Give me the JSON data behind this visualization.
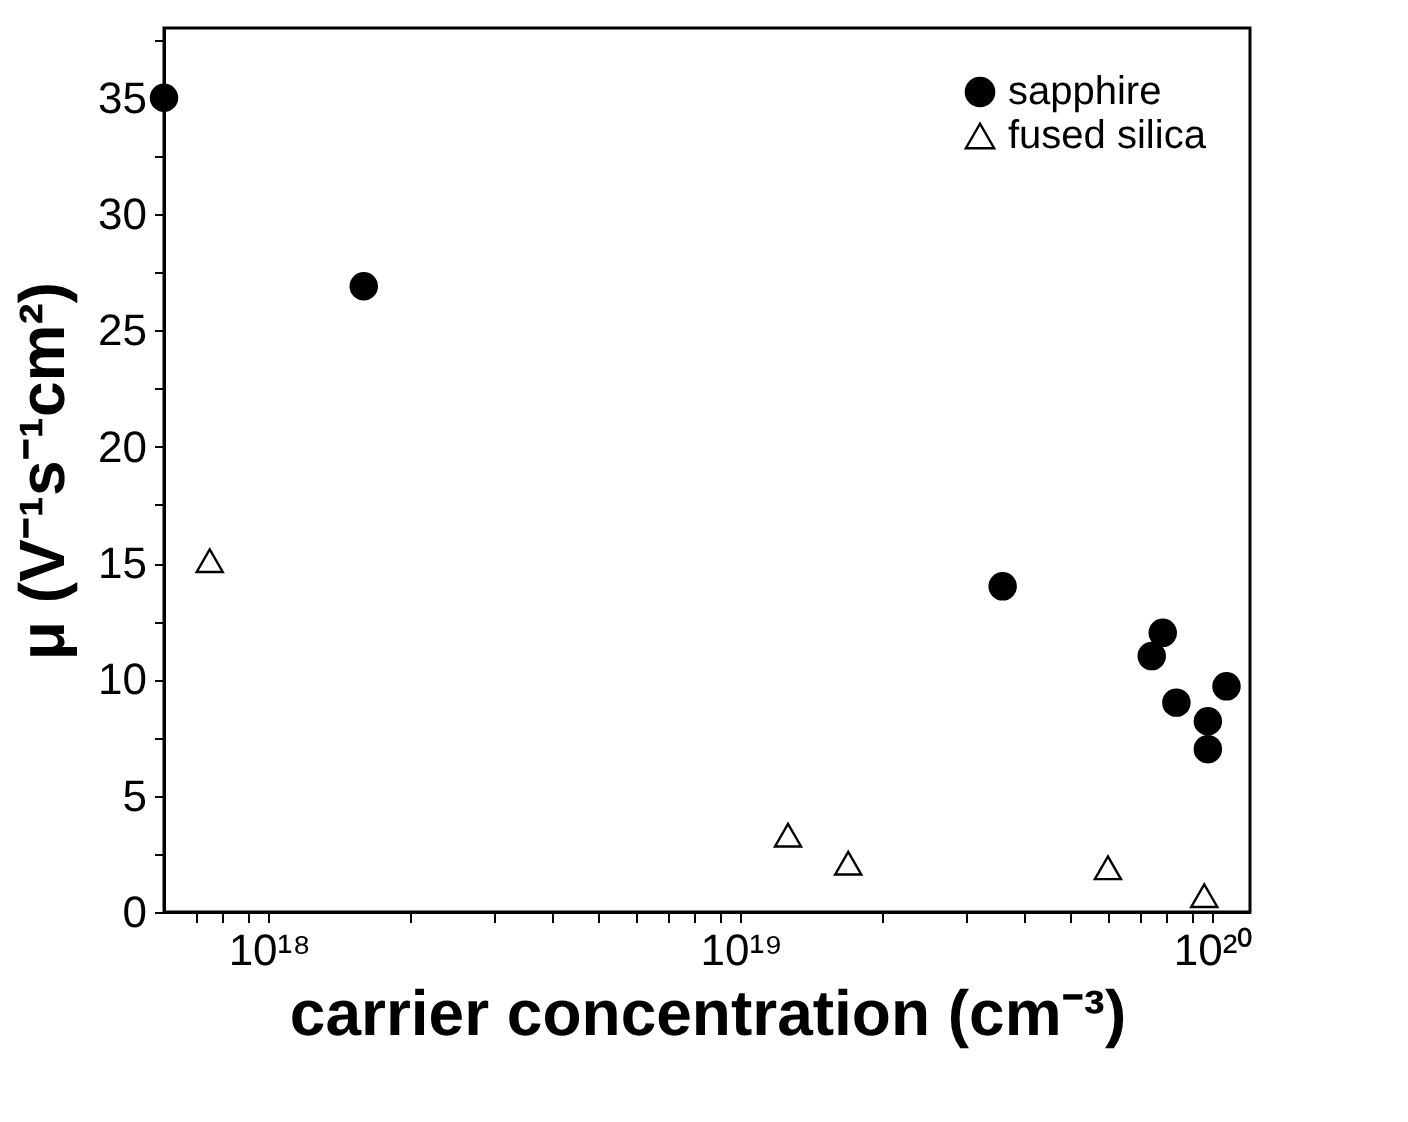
{
  "chart_data": {
    "type": "scatter",
    "xlabel": "carrier concentration (cm⁻³)",
    "ylabel": "μ (V⁻¹s⁻¹cm²)",
    "log": "x",
    "xlim": [
      6e+17,
      1.2e+20
    ],
    "xticks": [
      {
        "value": 7e+17,
        "label": null
      },
      {
        "value": 8e+17,
        "label": null
      },
      {
        "value": 9e+17,
        "label": null
      },
      {
        "value": 1e+18,
        "label": "10¹⁸"
      },
      {
        "value": 2e+18,
        "label": null
      },
      {
        "value": 3e+18,
        "label": null
      },
      {
        "value": 4e+18,
        "label": null
      },
      {
        "value": 5e+18,
        "label": null
      },
      {
        "value": 6e+18,
        "label": null
      },
      {
        "value": 7e+18,
        "label": null
      },
      {
        "value": 8e+18,
        "label": null
      },
      {
        "value": 9e+18,
        "label": null
      },
      {
        "value": 1e+19,
        "label": "10¹⁹"
      },
      {
        "value": 2e+19,
        "label": null
      },
      {
        "value": 3e+19,
        "label": null
      },
      {
        "value": 4e+19,
        "label": null
      },
      {
        "value": 5e+19,
        "label": null
      },
      {
        "value": 6e+19,
        "label": null
      },
      {
        "value": 7e+19,
        "label": null
      },
      {
        "value": 8e+19,
        "label": null
      },
      {
        "value": 9e+19,
        "label": null
      },
      {
        "value": 1e+20,
        "label": "10²⁰"
      }
    ],
    "ylim": [
      0,
      38
    ],
    "yticks": [
      0,
      {
        "value": 2.5,
        "label": null
      },
      5,
      {
        "value": 7.5,
        "label": null
      },
      10,
      {
        "value": 12.5,
        "label": null
      },
      15,
      {
        "value": 17.5,
        "label": null
      },
      20,
      {
        "value": 22.5,
        "label": null
      },
      25,
      {
        "value": 27.5,
        "label": null
      },
      30,
      {
        "value": 32.5,
        "label": null
      },
      35,
      {
        "value": 37.5,
        "label": null
      }
    ],
    "grid": false,
    "legend": "top right",
    "series": [
      {
        "name": "sapphire",
        "color": "#000000",
        "marker": "circle",
        "x": [
          6e+17,
          1.59e+18,
          3.59e+19,
          7.43e+19,
          7.84e+19,
          8.38e+19,
          9.77e+19,
          9.77e+19,
          1.07e+20
        ],
        "values": [
          35,
          26.9,
          14.0,
          11.0,
          12.0,
          9.0,
          8.2,
          7.0,
          9.7
        ]
      },
      {
        "name": "fused silica",
        "color": "#000000",
        "marker": "triangle",
        "x": [
          7.5e+17,
          1.26e+19,
          1.69e+19,
          6e+19,
          9.6e+19
        ],
        "values": [
          15.1,
          3.3,
          2.1,
          1.9,
          0.7
        ]
      }
    ]
  }
}
